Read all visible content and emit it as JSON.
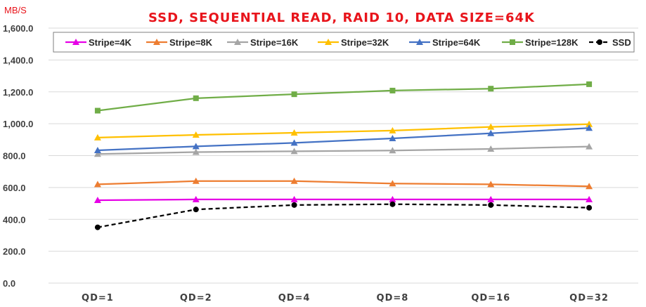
{
  "chart_data": {
    "type": "line",
    "title": "SSD, SEQUENTIAL READ, RAID 10, DATA SIZE=64K",
    "ylabel": "MB/S",
    "ylim": [
      0,
      1600
    ],
    "yticks": [
      "0.0",
      "200.0",
      "400.0",
      "600.0",
      "800.0",
      "1,000.0",
      "1,200.0",
      "1,400.0",
      "1,600.0"
    ],
    "categories": [
      "QD=1",
      "QD=2",
      "QD=4",
      "QD=8",
      "QD=16",
      "QD=32"
    ],
    "grid": "horizontal",
    "legend": "top",
    "series": [
      {
        "name": "Stripe=4K",
        "color": "#e600e6",
        "marker": "triangle",
        "dash": false,
        "values": [
          520,
          525,
          525,
          525,
          525,
          525
        ]
      },
      {
        "name": "Stripe=8K",
        "color": "#ed7d31",
        "marker": "triangle",
        "dash": false,
        "values": [
          620,
          640,
          640,
          625,
          620,
          607
        ]
      },
      {
        "name": "Stripe=16K",
        "color": "#a5a5a5",
        "marker": "triangle",
        "dash": false,
        "values": [
          810,
          822,
          827,
          832,
          842,
          857
        ]
      },
      {
        "name": "Stripe=32K",
        "color": "#ffc000",
        "marker": "triangle",
        "dash": false,
        "values": [
          913,
          930,
          943,
          957,
          980,
          997
        ]
      },
      {
        "name": "Stripe=64K",
        "color": "#4472c4",
        "marker": "triangle",
        "dash": false,
        "values": [
          833,
          858,
          880,
          908,
          940,
          973
        ]
      },
      {
        "name": "Stripe=128K",
        "color": "#70ad47",
        "marker": "square",
        "dash": false,
        "values": [
          1082,
          1160,
          1185,
          1208,
          1220,
          1248
        ]
      },
      {
        "name": "SSD",
        "color": "#000000",
        "marker": "circle",
        "dash": true,
        "values": [
          350,
          462,
          490,
          495,
          490,
          473
        ]
      }
    ]
  }
}
